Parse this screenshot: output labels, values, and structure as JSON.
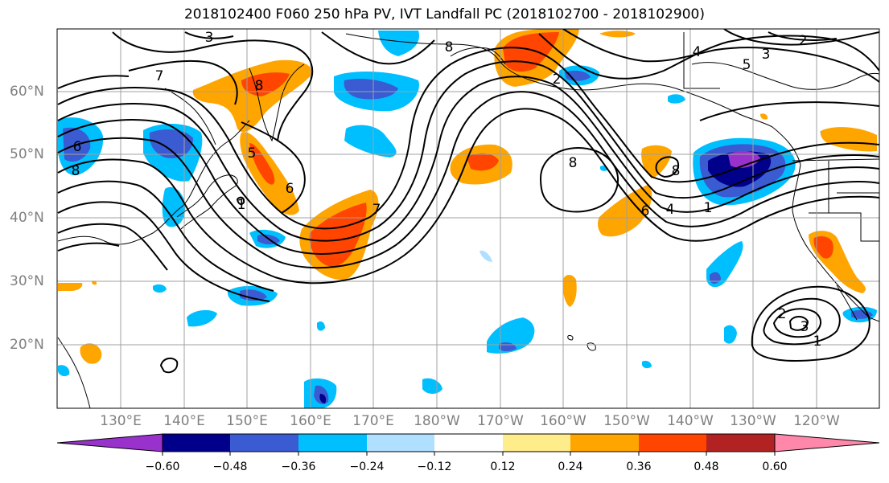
{
  "title": "2018102400 F060 250 hPa PV, IVT Landfall PC (2018102700 - 2018102900)",
  "lat_labels": [
    "60°N",
    "50°N",
    "40°N",
    "30°N",
    "20°N"
  ],
  "lon_labels": [
    "130°E",
    "140°E",
    "150°E",
    "160°E",
    "170°E",
    "180°W",
    "170°W",
    "160°W",
    "150°W",
    "140°W",
    "130°W",
    "120°W"
  ],
  "contour_labels": [
    "3",
    "2",
    "3",
    "4",
    "5",
    "7",
    "8",
    "6",
    "8",
    "5",
    "6",
    "1",
    "7",
    "8",
    "8",
    "2",
    "6",
    "4",
    "1",
    "8",
    "2",
    "3",
    "1"
  ],
  "colorbar": {
    "tick_labels": [
      "−0.60",
      "−0.48",
      "−0.36",
      "−0.24",
      "−0.12",
      "0.12",
      "0.24",
      "0.36",
      "0.48",
      "0.60"
    ],
    "colors": [
      "#9932cc",
      "#00008b",
      "#3a5bd1",
      "#00bfff",
      "#b0e0ff",
      "#ffffff",
      "#ffec8b",
      "#ffa500",
      "#ff4500",
      "#b22222",
      "#ff88aa"
    ]
  }
}
